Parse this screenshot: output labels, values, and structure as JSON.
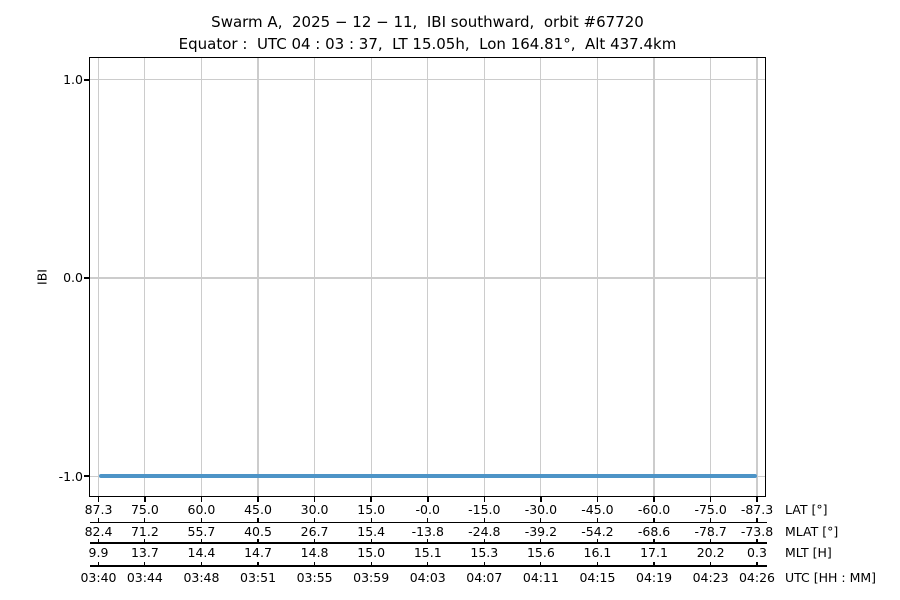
{
  "chart_data": {
    "type": "line",
    "title": "Swarm A,  2025 − 12 − 11,  IBI southward,  orbit #67720",
    "subtitle": "Equator :  UTC 04 : 03 : 37,  LT 15.05h,  Lon 164.81°,  Alt 437.4km",
    "ylabel": "IBI",
    "ylim": [
      -1.1,
      1.11
    ],
    "yticks": [
      {
        "value": 1.0,
        "label": "1.0"
      },
      {
        "value": 0.0,
        "label": "0.0"
      },
      {
        "value": -1.0,
        "label": "-1.0"
      }
    ],
    "grid": true,
    "legend": false,
    "series": [
      {
        "name": "IBI",
        "color": "#4d94c7",
        "x_lat": [
          87.3,
          -87.3
        ],
        "y": [
          -1.0,
          -1.0
        ]
      }
    ],
    "x_axis_rows": [
      {
        "label": "LAT [°]",
        "values": [
          "87.3",
          "75.0",
          "60.0",
          "45.0",
          "30.0",
          "15.0",
          "-0.0",
          "-15.0",
          "-30.0",
          "-45.0",
          "-60.0",
          "-75.0",
          "-87.3"
        ]
      },
      {
        "label": "MLAT [°]",
        "values": [
          "82.4",
          "71.2",
          "55.7",
          "40.5",
          "26.7",
          "15.4",
          "-13.8",
          "-24.8",
          "-39.2",
          "-54.2",
          "-68.6",
          "-78.7",
          "-73.8"
        ]
      },
      {
        "label": "MLT [H]",
        "values": [
          "9.9",
          "13.7",
          "14.4",
          "14.7",
          "14.8",
          "15.0",
          "15.1",
          "15.3",
          "15.6",
          "16.1",
          "17.1",
          "20.2",
          "0.3"
        ]
      },
      {
        "label": "UTC [HH : MM]",
        "values": [
          "03:40",
          "03:44",
          "03:48",
          "03:51",
          "03:55",
          "03:59",
          "04:03",
          "04:07",
          "04:11",
          "04:15",
          "04:19",
          "04:23",
          "04:26"
        ]
      }
    ],
    "colors": {
      "line": "#4d94c7",
      "grid": "#cccccc",
      "spine": "#000000",
      "text": "#000000",
      "background": "#ffffff"
    }
  }
}
